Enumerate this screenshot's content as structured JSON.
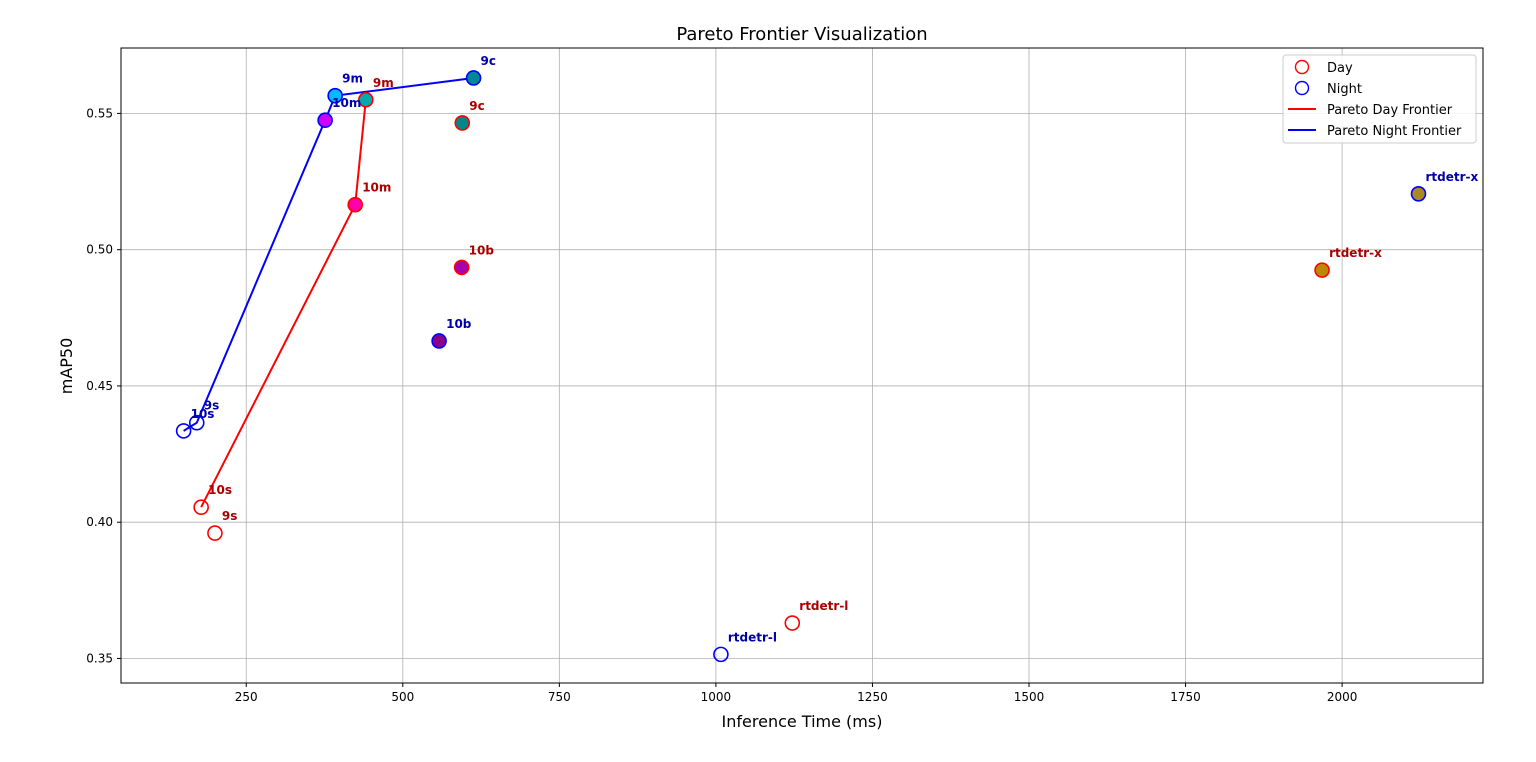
{
  "chart_data": {
    "type": "scatter",
    "title": "Pareto Frontier Visualization",
    "xlabel": "Inference Time (ms)",
    "ylabel": "mAP50",
    "xlim": [
      50,
      2225
    ],
    "ylim": [
      0.341,
      0.574
    ],
    "xticks": [
      250,
      500,
      750,
      1000,
      1250,
      1500,
      1750,
      2000
    ],
    "yticks": [
      0.35,
      0.4,
      0.45,
      0.5,
      0.55
    ],
    "grid": true,
    "legend_position": "top-right",
    "legend": [
      {
        "label": "Day",
        "kind": "marker",
        "color": "#ff0000"
      },
      {
        "label": "Night",
        "kind": "marker",
        "color": "#0000ff"
      },
      {
        "label": "Pareto Day Frontier",
        "kind": "line",
        "color": "#ff0000"
      },
      {
        "label": "Pareto Night Frontier",
        "kind": "line",
        "color": "#0000ff"
      }
    ],
    "series": [
      {
        "name": "Day",
        "edge_color": "#ff0000",
        "label_color": "#aa0000",
        "points": [
          {
            "label": "9s",
            "x": 200,
            "y": 0.396,
            "fill": "none"
          },
          {
            "label": "10s",
            "x": 178,
            "y": 0.4055,
            "fill": "none"
          },
          {
            "label": "10m",
            "x": 424,
            "y": 0.5165,
            "fill": "#ff00aa"
          },
          {
            "label": "9m",
            "x": 441,
            "y": 0.555,
            "fill": "#00aaaa"
          },
          {
            "label": "9c",
            "x": 595,
            "y": 0.5465,
            "fill": "#008888"
          },
          {
            "label": "10b",
            "x": 594,
            "y": 0.4935,
            "fill": "#aa00aa"
          },
          {
            "label": "rtdetr-l",
            "x": 1122,
            "y": 0.363,
            "fill": "none"
          },
          {
            "label": "rtdetr-x",
            "x": 1968,
            "y": 0.4925,
            "fill": "#bb8800"
          }
        ]
      },
      {
        "name": "Night",
        "edge_color": "#0000ff",
        "label_color": "#0000aa",
        "points": [
          {
            "label": "10s",
            "x": 150,
            "y": 0.4335,
            "fill": "none"
          },
          {
            "label": "9s",
            "x": 171,
            "y": 0.4365,
            "fill": "none"
          },
          {
            "label": "10m",
            "x": 376,
            "y": 0.5475,
            "fill": "#cc00ff"
          },
          {
            "label": "9m",
            "x": 392,
            "y": 0.5565,
            "fill": "#00bbff"
          },
          {
            "label": "9c",
            "x": 613,
            "y": 0.563,
            "fill": "#008899"
          },
          {
            "label": "10b",
            "x": 558,
            "y": 0.4665,
            "fill": "#880088"
          },
          {
            "label": "rtdetr-l",
            "x": 1008,
            "y": 0.3515,
            "fill": "none"
          },
          {
            "label": "rtdetr-x",
            "x": 2122,
            "y": 0.5205,
            "fill": "#aa8822"
          }
        ]
      }
    ],
    "frontiers": [
      {
        "name": "Pareto Day Frontier",
        "color": "#ff0000",
        "points": [
          [
            178,
            0.4055
          ],
          [
            424,
            0.5165
          ],
          [
            441,
            0.555
          ]
        ]
      },
      {
        "name": "Pareto Night Frontier",
        "color": "#0000ff",
        "points": [
          [
            150,
            0.4335
          ],
          [
            171,
            0.4365
          ],
          [
            376,
            0.5475
          ],
          [
            392,
            0.5565
          ],
          [
            613,
            0.563
          ]
        ]
      }
    ]
  }
}
